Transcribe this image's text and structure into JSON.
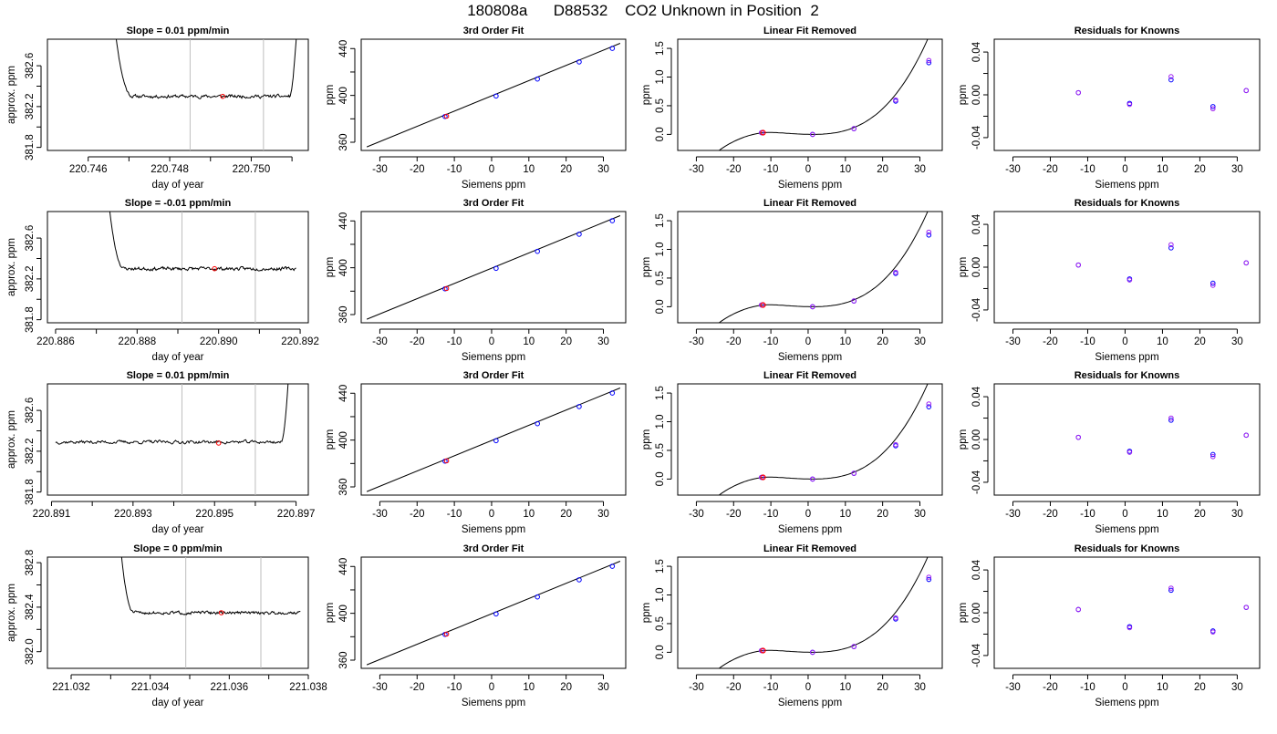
{
  "figure": {
    "title": "180808a      D88532    CO2 Unknown in Position  2"
  },
  "colors": {
    "trace": "#000000",
    "axis": "#000000",
    "window_line": "#bebebe",
    "known_points": "#0000ff",
    "secondary_points": "#a020f0",
    "unknown_point": "#ff0000"
  },
  "chart_data": [
    {
      "type": "line",
      "panel": "time-series-1",
      "title": "Slope =  0.01  ppm/min",
      "xlabel": "day of year",
      "ylabel": "approx. ppm",
      "xlim": [
        220.745,
        220.7514
      ],
      "ylim": [
        381.77,
        382.86
      ],
      "xticks": [
        220.746,
        220.747,
        220.748,
        220.749,
        220.75,
        220.751
      ],
      "xticklabels": [
        "220.746",
        "",
        "220.748",
        "",
        "220.750",
        ""
      ],
      "yticks": [
        381.8,
        382.0,
        382.2,
        382.4,
        382.6
      ],
      "yticklabels": [
        "381.8",
        "",
        "382.2",
        "",
        "382.6"
      ],
      "vlines": [
        220.7485,
        220.7503
      ],
      "x_start": 220.7466,
      "x_end": 220.75115,
      "base": 382.3,
      "noise": 0.012,
      "seed": 11,
      "drop_end": 220.7471,
      "rise_start": 220.75095,
      "marker": {
        "x": 220.7493,
        "y": 382.3
      }
    },
    {
      "type": "scatter",
      "panel": "cubic-fit-1",
      "title": "3rd Order Fit",
      "xlabel": "Siemens ppm",
      "ylabel": "ppm",
      "xlim": [
        -35,
        36
      ],
      "ylim": [
        353,
        448
      ],
      "xticks": [
        -30,
        -20,
        -10,
        0,
        10,
        20,
        30
      ],
      "xticklabels": [
        "-30",
        "-20",
        "-10",
        "0",
        "10",
        "20",
        "30"
      ],
      "yticks": [
        360,
        380,
        400,
        420,
        440
      ],
      "yticklabels": [
        "360",
        "",
        "400",
        "",
        "440"
      ],
      "line": {
        "x": [
          -33.5,
          34.5
        ],
        "y": [
          356.0,
          444.5
        ]
      },
      "knowns": {
        "x": [
          -12.5,
          1.2,
          12.3,
          23.5,
          32.4
        ],
        "y": [
          382.0,
          399.5,
          414.0,
          428.6,
          440.2
        ]
      },
      "unknown": {
        "x": -12.1,
        "y": 382.3
      }
    },
    {
      "type": "scatter",
      "panel": "linear-removed-1",
      "title": "Linear Fit Removed",
      "xlabel": "Siemens ppm",
      "ylabel": "ppm",
      "xlim": [
        -35,
        36
      ],
      "ylim": [
        -0.28,
        1.66
      ],
      "xticks": [
        -30,
        -20,
        -10,
        0,
        10,
        20,
        30
      ],
      "xticklabels": [
        "-30",
        "-20",
        "-10",
        "0",
        "10",
        "20",
        "30"
      ],
      "yticks": [
        0.0,
        0.5,
        1.0,
        1.5
      ],
      "yticklabels": [
        "0.0",
        "0.5",
        "1.0",
        "1.5"
      ],
      "curve_scale": 1.0,
      "knowns": {
        "x": [
          -12.5,
          -12.5,
          1.2,
          1.2,
          12.3,
          12.3,
          23.5,
          23.5,
          32.4,
          32.4
        ],
        "y": [
          0.03,
          0.03,
          0.0,
          0.0,
          0.1,
          0.1,
          0.58,
          0.6,
          1.25,
          1.29
        ]
      },
      "unknown": {
        "x": -12.1,
        "y": 0.03
      }
    },
    {
      "type": "scatter",
      "panel": "residuals-1",
      "title": "Residuals for Knowns",
      "xlabel": "Siemens ppm",
      "ylabel": "ppm",
      "xlim": [
        -35,
        36
      ],
      "ylim": [
        -0.052,
        0.052
      ],
      "xticks": [
        -30,
        -20,
        -10,
        0,
        10,
        20,
        30
      ],
      "xticklabels": [
        "-30",
        "-20",
        "-10",
        "0",
        "10",
        "20",
        "30"
      ],
      "yticks": [
        -0.04,
        -0.02,
        0.0,
        0.02,
        0.04
      ],
      "yticklabels": [
        "-0.04",
        "",
        "0.00",
        "",
        "0.04"
      ],
      "residuals": {
        "x": [
          -12.5,
          -12.5,
          1.2,
          1.2,
          12.3,
          12.3,
          23.5,
          23.5,
          32.4,
          32.4
        ],
        "y": [
          0.002,
          0.002,
          -0.008,
          -0.009,
          0.014,
          0.017,
          -0.011,
          -0.013,
          0.004,
          0.004
        ]
      }
    },
    {
      "type": "line",
      "panel": "time-series-2",
      "title": "Slope =  -0.01  ppm/min",
      "xlabel": "day of year",
      "ylabel": "approx. ppm",
      "xlim": [
        220.8858,
        220.8922
      ],
      "ylim": [
        381.77,
        382.86
      ],
      "xticks": [
        220.886,
        220.887,
        220.888,
        220.889,
        220.89,
        220.891,
        220.892
      ],
      "xticklabels": [
        "220.886",
        "",
        "220.888",
        "",
        "220.890",
        "",
        "220.892"
      ],
      "yticks": [
        381.8,
        382.0,
        382.2,
        382.4,
        382.6
      ],
      "yticklabels": [
        "381.8",
        "",
        "382.2",
        "",
        "382.6"
      ],
      "vlines": [
        220.8891,
        220.8909
      ],
      "x_start": 220.88725,
      "x_end": 220.8919,
      "base": 382.3,
      "noise": 0.012,
      "seed": 23,
      "drop_end": 220.8877,
      "rise_start": null,
      "marker": {
        "x": 220.8899,
        "y": 382.3
      }
    },
    {
      "type": "scatter",
      "panel": "cubic-fit-2",
      "title": "3rd Order Fit",
      "xlabel": "Siemens ppm",
      "ylabel": "ppm",
      "xlim": [
        -35,
        36
      ],
      "ylim": [
        353,
        448
      ],
      "xticks": [
        -30,
        -20,
        -10,
        0,
        10,
        20,
        30
      ],
      "xticklabels": [
        "-30",
        "-20",
        "-10",
        "0",
        "10",
        "20",
        "30"
      ],
      "yticks": [
        360,
        380,
        400,
        420,
        440
      ],
      "yticklabels": [
        "360",
        "",
        "400",
        "",
        "440"
      ],
      "line": {
        "x": [
          -33.5,
          34.5
        ],
        "y": [
          356.0,
          444.5
        ]
      },
      "knowns": {
        "x": [
          -12.5,
          1.2,
          12.3,
          23.5,
          32.4
        ],
        "y": [
          382.0,
          399.5,
          414.0,
          428.6,
          440.2
        ]
      },
      "unknown": {
        "x": -12.1,
        "y": 382.3
      }
    },
    {
      "type": "scatter",
      "panel": "linear-removed-2",
      "title": "Linear Fit Removed",
      "xlabel": "Siemens ppm",
      "ylabel": "ppm",
      "xlim": [
        -35,
        36
      ],
      "ylim": [
        -0.28,
        1.66
      ],
      "xticks": [
        -30,
        -20,
        -10,
        0,
        10,
        20,
        30
      ],
      "xticklabels": [
        "-30",
        "-20",
        "-10",
        "0",
        "10",
        "20",
        "30"
      ],
      "yticks": [
        0.0,
        0.5,
        1.0,
        1.5
      ],
      "yticklabels": [
        "0.0",
        "0.5",
        "1.0",
        "1.5"
      ],
      "curve_scale": 1.0,
      "knowns": {
        "x": [
          -12.5,
          -12.5,
          1.2,
          1.2,
          12.3,
          12.3,
          23.5,
          23.5,
          32.4,
          32.4
        ],
        "y": [
          0.03,
          0.03,
          0.0,
          0.0,
          0.1,
          0.1,
          0.58,
          0.6,
          1.25,
          1.3
        ]
      },
      "unknown": {
        "x": -12.1,
        "y": 0.03
      }
    },
    {
      "type": "scatter",
      "panel": "residuals-2",
      "title": "Residuals for Knowns",
      "xlabel": "Siemens ppm",
      "ylabel": "ppm",
      "xlim": [
        -35,
        36
      ],
      "ylim": [
        -0.052,
        0.052
      ],
      "xticks": [
        -30,
        -20,
        -10,
        0,
        10,
        20,
        30
      ],
      "xticklabels": [
        "-30",
        "-20",
        "-10",
        "0",
        "10",
        "20",
        "30"
      ],
      "yticks": [
        -0.04,
        -0.02,
        0.0,
        0.02,
        0.04
      ],
      "yticklabels": [
        "-0.04",
        "",
        "0.00",
        "",
        "0.04"
      ],
      "residuals": {
        "x": [
          -12.5,
          -12.5,
          1.2,
          1.2,
          12.3,
          12.3,
          23.5,
          23.5,
          32.4,
          32.4
        ],
        "y": [
          0.002,
          0.002,
          -0.011,
          -0.012,
          0.018,
          0.021,
          -0.015,
          -0.017,
          0.004,
          0.004
        ]
      }
    },
    {
      "type": "line",
      "panel": "time-series-3",
      "title": "Slope =  0.01  ppm/min",
      "xlabel": "day of year",
      "ylabel": "approx. ppm",
      "xlim": [
        220.8909,
        220.8973
      ],
      "ylim": [
        381.77,
        382.86
      ],
      "xticks": [
        220.891,
        220.892,
        220.893,
        220.894,
        220.895,
        220.896,
        220.897
      ],
      "xticklabels": [
        "220.891",
        "",
        "220.893",
        "",
        "220.895",
        "",
        "220.897"
      ],
      "yticks": [
        381.8,
        382.0,
        382.2,
        382.4,
        382.6
      ],
      "yticklabels": [
        "381.8",
        "",
        "382.2",
        "",
        "382.6"
      ],
      "vlines": [
        220.8942,
        220.896
      ],
      "x_start": 220.8911,
      "x_end": 220.89685,
      "base": 382.29,
      "noise": 0.012,
      "seed": 37,
      "drop_end": null,
      "rise_start": 220.89665,
      "marker": {
        "x": 220.8951,
        "y": 382.28
      }
    },
    {
      "type": "scatter",
      "panel": "cubic-fit-3",
      "title": "3rd Order Fit",
      "xlabel": "Siemens ppm",
      "ylabel": "ppm",
      "xlim": [
        -35,
        36
      ],
      "ylim": [
        353,
        448
      ],
      "xticks": [
        -30,
        -20,
        -10,
        0,
        10,
        20,
        30
      ],
      "xticklabels": [
        "-30",
        "-20",
        "-10",
        "0",
        "10",
        "20",
        "30"
      ],
      "yticks": [
        360,
        380,
        400,
        420,
        440
      ],
      "yticklabels": [
        "360",
        "",
        "400",
        "",
        "440"
      ],
      "line": {
        "x": [
          -33.5,
          34.5
        ],
        "y": [
          356.0,
          444.5
        ]
      },
      "knowns": {
        "x": [
          -12.5,
          1.2,
          12.3,
          23.5,
          32.4
        ],
        "y": [
          382.0,
          399.5,
          414.0,
          428.6,
          440.2
        ]
      },
      "unknown": {
        "x": -12.1,
        "y": 382.3
      }
    },
    {
      "type": "scatter",
      "panel": "linear-removed-3",
      "title": "Linear Fit Removed",
      "xlabel": "Siemens ppm",
      "ylabel": "ppm",
      "xlim": [
        -35,
        36
      ],
      "ylim": [
        -0.28,
        1.66
      ],
      "xticks": [
        -30,
        -20,
        -10,
        0,
        10,
        20,
        30
      ],
      "xticklabels": [
        "-30",
        "-20",
        "-10",
        "0",
        "10",
        "20",
        "30"
      ],
      "yticks": [
        0.0,
        0.5,
        1.0,
        1.5
      ],
      "yticklabels": [
        "0.0",
        "0.5",
        "1.0",
        "1.5"
      ],
      "curve_scale": 1.0,
      "knowns": {
        "x": [
          -12.5,
          -12.5,
          1.2,
          1.2,
          12.3,
          12.3,
          23.5,
          23.5,
          32.4,
          32.4
        ],
        "y": [
          0.03,
          0.03,
          0.0,
          0.0,
          0.1,
          0.1,
          0.58,
          0.6,
          1.26,
          1.31
        ]
      },
      "unknown": {
        "x": -12.1,
        "y": 0.03
      }
    },
    {
      "type": "scatter",
      "panel": "residuals-3",
      "title": "Residuals for Knowns",
      "xlabel": "Siemens ppm",
      "ylabel": "ppm",
      "xlim": [
        -35,
        36
      ],
      "ylim": [
        -0.052,
        0.052
      ],
      "xticks": [
        -30,
        -20,
        -10,
        0,
        10,
        20,
        30
      ],
      "xticklabels": [
        "-30",
        "-20",
        "-10",
        "0",
        "10",
        "20",
        "30"
      ],
      "yticks": [
        -0.04,
        -0.02,
        0.0,
        0.02,
        0.04
      ],
      "yticklabels": [
        "-0.04",
        "",
        "0.00",
        "",
        "0.04"
      ],
      "residuals": {
        "x": [
          -12.5,
          -12.5,
          1.2,
          1.2,
          12.3,
          12.3,
          23.5,
          23.5,
          32.4,
          32.4
        ],
        "y": [
          0.002,
          0.002,
          -0.011,
          -0.012,
          0.018,
          0.02,
          -0.014,
          -0.016,
          0.004,
          0.004
        ]
      }
    },
    {
      "type": "line",
      "panel": "time-series-4",
      "title": "Slope =  0  ppm/min",
      "xlabel": "day of year",
      "ylabel": "approx. ppm",
      "xlim": [
        221.0314,
        221.038
      ],
      "ylim": [
        381.85,
        382.85
      ],
      "xticks": [
        221.032,
        221.033,
        221.034,
        221.035,
        221.036,
        221.037,
        221.038
      ],
      "xticklabels": [
        "221.032",
        "",
        "221.034",
        "",
        "221.036",
        "",
        "221.038"
      ],
      "yticks": [
        382.0,
        382.2,
        382.4,
        382.6,
        382.8
      ],
      "yticklabels": [
        "382.0",
        "",
        "382.4",
        "",
        "382.8"
      ],
      "vlines": [
        221.0349,
        221.0368
      ],
      "x_start": 221.0332,
      "x_end": 221.0378,
      "base": 382.35,
      "noise": 0.01,
      "seed": 51,
      "drop_end": 221.0336,
      "rise_start": null,
      "marker": {
        "x": 221.0358,
        "y": 382.35
      }
    },
    {
      "type": "scatter",
      "panel": "cubic-fit-4",
      "title": "3rd Order Fit",
      "xlabel": "Siemens ppm",
      "ylabel": "ppm",
      "xlim": [
        -35,
        36
      ],
      "ylim": [
        353,
        448
      ],
      "xticks": [
        -30,
        -20,
        -10,
        0,
        10,
        20,
        30
      ],
      "xticklabels": [
        "-30",
        "-20",
        "-10",
        "0",
        "10",
        "20",
        "30"
      ],
      "yticks": [
        360,
        380,
        400,
        420,
        440
      ],
      "yticklabels": [
        "360",
        "",
        "400",
        "",
        "440"
      ],
      "line": {
        "x": [
          -33.5,
          34.5
        ],
        "y": [
          356.0,
          444.5
        ]
      },
      "knowns": {
        "x": [
          -12.5,
          1.2,
          12.3,
          23.5,
          32.4
        ],
        "y": [
          382.0,
          399.5,
          414.0,
          428.6,
          440.2
        ]
      },
      "unknown": {
        "x": -12.1,
        "y": 382.3
      }
    },
    {
      "type": "scatter",
      "panel": "linear-removed-4",
      "title": "Linear Fit Removed",
      "xlabel": "Siemens ppm",
      "ylabel": "ppm",
      "xlim": [
        -35,
        36
      ],
      "ylim": [
        -0.28,
        1.66
      ],
      "xticks": [
        -30,
        -20,
        -10,
        0,
        10,
        20,
        30
      ],
      "xticklabels": [
        "-30",
        "-20",
        "-10",
        "0",
        "10",
        "20",
        "30"
      ],
      "yticks": [
        0.0,
        0.5,
        1.0,
        1.5
      ],
      "yticklabels": [
        "0.0",
        "0.5",
        "1.0",
        "1.5"
      ],
      "curve_scale": 1.0,
      "knowns": {
        "x": [
          -12.5,
          -12.5,
          1.2,
          1.2,
          12.3,
          12.3,
          23.5,
          23.5,
          32.4,
          32.4
        ],
        "y": [
          0.03,
          0.03,
          0.0,
          0.0,
          0.1,
          0.1,
          0.58,
          0.6,
          1.27,
          1.31
        ]
      },
      "unknown": {
        "x": -12.1,
        "y": 0.03
      }
    },
    {
      "type": "scatter",
      "panel": "residuals-4",
      "title": "Residuals for Knowns",
      "xlabel": "Siemens ppm",
      "ylabel": "ppm",
      "xlim": [
        -35,
        36
      ],
      "ylim": [
        -0.052,
        0.052
      ],
      "xticks": [
        -30,
        -20,
        -10,
        0,
        10,
        20,
        30
      ],
      "xticklabels": [
        "-30",
        "-20",
        "-10",
        "0",
        "10",
        "20",
        "30"
      ],
      "yticks": [
        -0.04,
        -0.02,
        0.0,
        0.02,
        0.04
      ],
      "yticklabels": [
        "-0.04",
        "",
        "0.00",
        "",
        "0.04"
      ],
      "residuals": {
        "x": [
          -12.5,
          -12.5,
          1.2,
          1.2,
          12.3,
          12.3,
          23.5,
          23.5,
          32.4,
          32.4
        ],
        "y": [
          0.003,
          0.003,
          -0.013,
          -0.014,
          0.021,
          0.023,
          -0.017,
          -0.018,
          0.005,
          0.005
        ]
      }
    }
  ]
}
